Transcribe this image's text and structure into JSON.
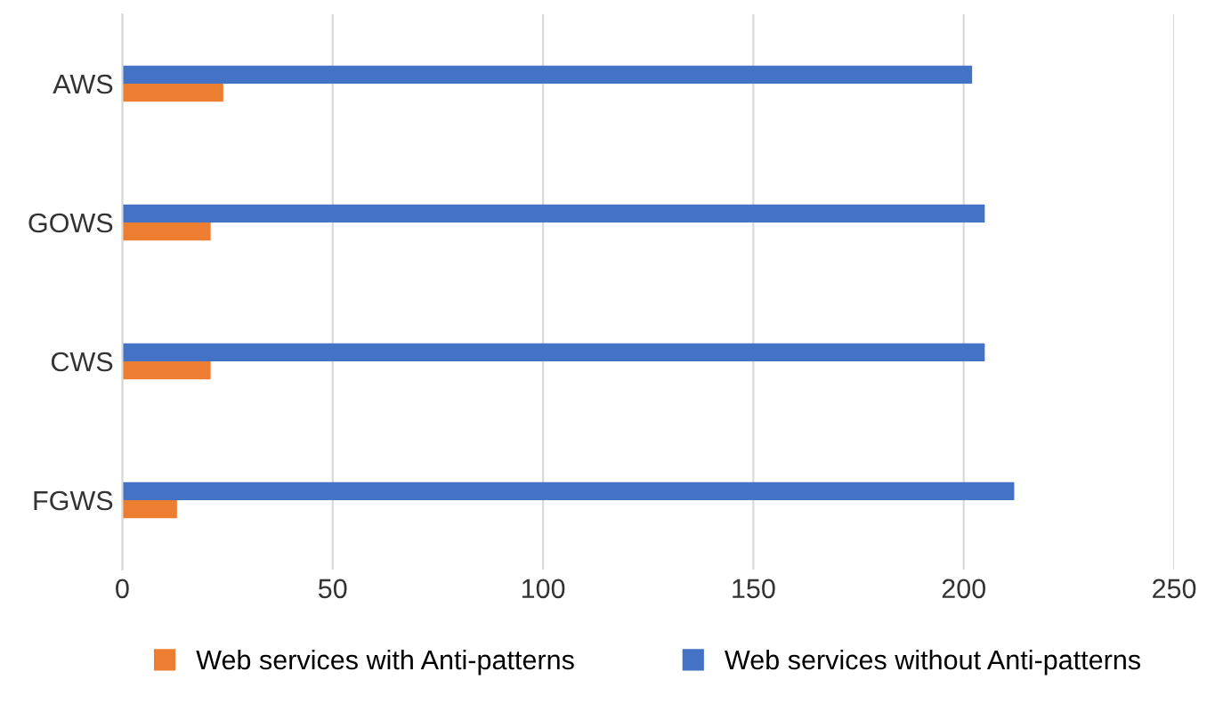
{
  "chart_data": {
    "type": "bar",
    "orientation": "horizontal",
    "categories": [
      "AWS",
      "GOWS",
      "CWS",
      "FGWS"
    ],
    "series": [
      {
        "name": "Web services with Anti-patterns",
        "color": "#ed7d31",
        "values": [
          24,
          21,
          21,
          13
        ]
      },
      {
        "name": "Web services without Anti-patterns",
        "color": "#4472c4",
        "values": [
          202,
          205,
          205,
          212
        ]
      }
    ],
    "xlim": [
      0,
      250
    ],
    "xticks": [
      0,
      50,
      100,
      150,
      200,
      250
    ],
    "grid": "x",
    "legend": "bottom"
  }
}
